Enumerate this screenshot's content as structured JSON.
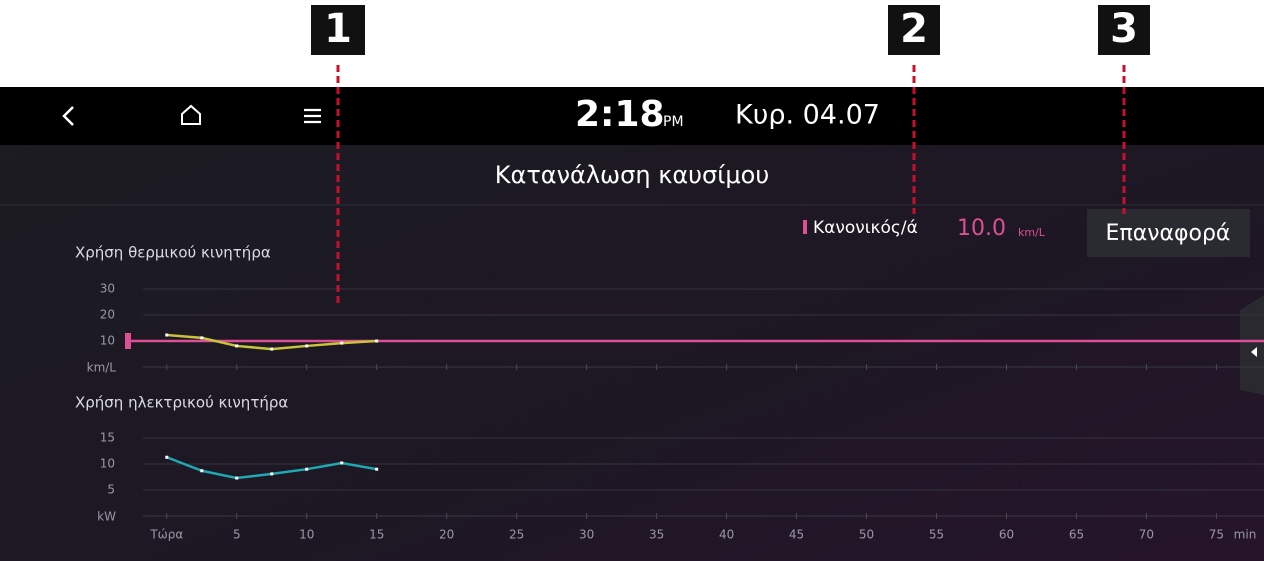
{
  "callouts": [
    "1",
    "2",
    "3"
  ],
  "status_bar": {
    "time": "2:18",
    "ampm": "PM",
    "date": "Κυρ. 04.07"
  },
  "header": {
    "title": "Κατανάλωση καυσίμου"
  },
  "average": {
    "label": "Κανονικός/ά",
    "value": 10,
    "value_label": "10.0",
    "unit": "km/L",
    "color": "#dc4f95"
  },
  "reset_button": "Επαναφορά",
  "chart_data": [
    {
      "type": "line",
      "title": "Χρήση θερμικού κινητήρα",
      "y_unit": "km/L",
      "x": [
        0,
        2.5,
        5,
        7.5,
        10,
        12.5,
        15
      ],
      "values": [
        12.3,
        11.2,
        8.1,
        6.9,
        8.1,
        9.2,
        10
      ],
      "color": "#c9c23c",
      "ylim": [
        0,
        30
      ],
      "yticks": [
        10,
        20,
        30
      ],
      "xlim": [
        -1.7,
        78.4
      ],
      "xticks": [
        0,
        5,
        10,
        15,
        20,
        25,
        30,
        35,
        40,
        45,
        50,
        55,
        60,
        65,
        70,
        75
      ],
      "grid": true
    },
    {
      "type": "line",
      "title": "Χρήση ηλεκτρικού κινητήρα",
      "y_unit": "kW",
      "x_unit": "min",
      "x": [
        0,
        2.5,
        5,
        7.5,
        10,
        12.5,
        15
      ],
      "values": [
        11.3,
        8.7,
        7.3,
        8.1,
        9.0,
        10.2,
        9.0
      ],
      "color": "#1fa9b2",
      "ylim": [
        0,
        15
      ],
      "yticks": [
        5,
        10,
        15
      ],
      "xlim": [
        -1.7,
        78.4
      ],
      "xticks": [
        {
          "value": 0,
          "label": "Τώρα"
        },
        5,
        10,
        15,
        20,
        25,
        30,
        35,
        40,
        45,
        50,
        55,
        60,
        65,
        70,
        75
      ],
      "grid": true
    }
  ]
}
